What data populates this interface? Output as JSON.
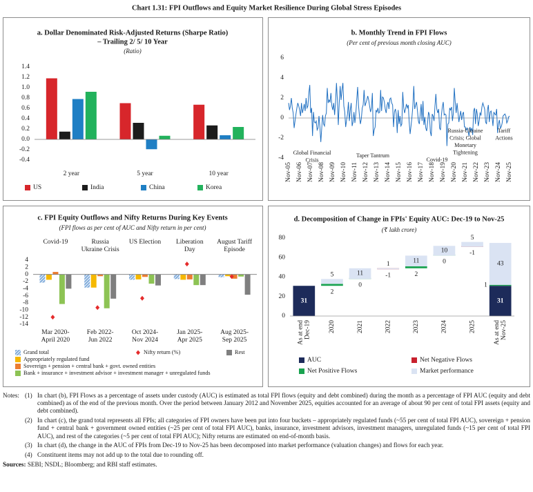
{
  "title": "Chart 1.31: FPI Outflows and Equity Market Resilience During Global Stress Episodes",
  "chart_data": [
    {
      "type": "bar",
      "title": [
        "a. Dollar Denominated Risk-Adjusted Returns (Sharpe Ratio)",
        "– Trailing 2/ 5/ 10 Year"
      ],
      "subtitle": "(Ratio)",
      "categories": [
        "2 year",
        "5 year",
        "10 year"
      ],
      "series": [
        {
          "name": "US",
          "color": "#d7262b",
          "values": [
            1.18,
            0.7,
            0.67
          ]
        },
        {
          "name": "India",
          "color": "#1c1c1c",
          "values": [
            0.15,
            0.32,
            0.27
          ]
        },
        {
          "name": "China",
          "color": "#1f7fc4",
          "values": [
            0.78,
            -0.19,
            0.08
          ]
        },
        {
          "name": "Korea",
          "color": "#22b25c",
          "values": [
            0.92,
            0.07,
            0.24
          ]
        }
      ],
      "ylim": [
        -0.4,
        1.4
      ],
      "yticks": [
        -0.4,
        -0.2,
        {
          "value": 0,
          "label": "0.0"
        },
        0.2,
        0.4,
        0.6,
        0.8,
        {
          "value": 1,
          "label": "1.0"
        },
        1.2,
        1.4
      ],
      "legend": "bottom"
    },
    {
      "type": "line",
      "title": [
        "b. Monthly Trend in FPI Flows"
      ],
      "subtitle": "(Per cent of previous month closing AUC)",
      "color": "#1f6fc1",
      "categories": [
        "Nov-05",
        null,
        null,
        null,
        null,
        null,
        null,
        null,
        null,
        null,
        null,
        null,
        "Nov-06",
        null,
        null,
        null,
        null,
        null,
        null,
        null,
        null,
        null,
        null,
        null,
        "Nov-07",
        null,
        null,
        null,
        null,
        null,
        null,
        null,
        null,
        null,
        null,
        null,
        "Nov-08",
        null,
        null,
        null,
        null,
        null,
        null,
        null,
        null,
        null,
        null,
        null,
        "Nov-09",
        null,
        null,
        null,
        null,
        null,
        null,
        null,
        null,
        null,
        null,
        null,
        "Nov-10",
        null,
        null,
        null,
        null,
        null,
        null,
        null,
        null,
        null,
        null,
        null,
        "Nov-11",
        null,
        null,
        null,
        null,
        null,
        null,
        null,
        null,
        null,
        null,
        null,
        "Nov-12",
        null,
        null,
        null,
        null,
        null,
        null,
        null,
        null,
        null,
        null,
        null,
        "Nov-13",
        null,
        null,
        null,
        null,
        null,
        null,
        null,
        null,
        null,
        null,
        null,
        "Nov-14",
        null,
        null,
        null,
        null,
        null,
        null,
        null,
        null,
        null,
        null,
        null,
        "Nov-15",
        null,
        null,
        null,
        null,
        null,
        null,
        null,
        null,
        null,
        null,
        null,
        "Nov-16",
        null,
        null,
        null,
        null,
        null,
        null,
        null,
        null,
        null,
        null,
        null,
        "Nov-17",
        null,
        null,
        null,
        null,
        null,
        null,
        null,
        null,
        null,
        null,
        null,
        "Nov-18",
        null,
        null,
        null,
        null,
        null,
        null,
        null,
        null,
        null,
        null,
        null,
        "Nov-19",
        null,
        null,
        null,
        null,
        null,
        null,
        null,
        null,
        null,
        null,
        null,
        "Nov-20",
        null,
        null,
        null,
        null,
        null,
        null,
        null,
        null,
        null,
        null,
        null,
        "Nov-21",
        null,
        null,
        null,
        null,
        null,
        null,
        null,
        null,
        null,
        null,
        null,
        "Nov-22",
        null,
        null,
        null,
        null,
        null,
        null,
        null,
        null,
        null,
        null,
        null,
        "Nov-23",
        null,
        null,
        null,
        null,
        null,
        null,
        null,
        null,
        null,
        null,
        null,
        "Nov-24",
        null,
        null,
        null,
        null,
        null,
        null,
        null,
        null,
        null,
        null,
        null,
        "Nov-25"
      ],
      "values": [
        1.5,
        0.8,
        1.2,
        2.0,
        1.0,
        0.5,
        -1.0,
        -0.3,
        0.4,
        1.0,
        1.5,
        1.2,
        0.8,
        0.2,
        1.5,
        0.5,
        0.9,
        1.4,
        0.7,
        2.0,
        1.0,
        1.2,
        2.5,
        3.3,
        0.5,
        1.0,
        -1.8,
        0.6,
        -0.4,
        -0.5,
        -0.3,
        -1.2,
        -1.0,
        0.2,
        -0.9,
        -2.4,
        -1.0,
        0.3,
        -0.6,
        -0.8,
        0.2,
        0.5,
        3.0,
        1.5,
        1.8,
        1.6,
        2.5,
        1.2,
        0.8,
        1.5,
        0.3,
        1.6,
        3.5,
        1.8,
        -0.7,
        1.5,
        3.2,
        1.8,
        2.8,
        3.5,
        1.2,
        0.6,
        -0.9,
        -0.2,
        0.4,
        1.6,
        -0.3,
        0.8,
        1.5,
        -0.8,
        -0.4,
        0.6,
        -0.5,
        0.4,
        1.8,
        3.1,
        1.2,
        0.2,
        -0.6,
        -0.1,
        1.0,
        1.3,
        2.8,
        1.2,
        1.5,
        1.8,
        2.2,
        1.8,
        1.2,
        0.6,
        1.0,
        2.5,
        -1.8,
        -1.2,
        -0.9,
        0.8,
        0.6,
        1.0,
        0.5,
        0.6,
        2.8,
        0.7,
        2.1,
        2.0,
        1.6,
        0.9,
        0.5,
        1.3,
        1.6,
        0.9,
        1.9,
        2.0,
        1.5,
        1.3,
        -0.9,
        0.6,
        0.9,
        0.4,
        -1.5,
        0.8,
        -0.6,
        0.2,
        -0.8,
        -0.6,
        2.6,
        1.1,
        0.5,
        0.9,
        1.4,
        1.0,
        1.3,
        -0.4,
        -1.6,
        -0.8,
        0.1,
        1.2,
        3.2,
        0.9,
        1.3,
        1.6,
        0.7,
        -0.3,
        -0.6,
        0.4,
        1.4,
        -0.3,
        1.7,
        -0.7,
        0.1,
        -1.0,
        -1.3,
        -0.5,
        0.6,
        0.3,
        -1.4,
        -1.8,
        0.4,
        0.2,
        -0.3,
        1.2,
        2.4,
        0.9,
        0.5,
        0.9,
        -1.0,
        -1.2,
        0.3,
        1.1,
        1.6,
        0.3,
        0.4,
        0.3,
        -2.8,
        -0.6,
        -0.5,
        1.0,
        0.8,
        1.1,
        -0.3,
        0.5,
        3.0,
        1.6,
        0.5,
        1.5,
        0.6,
        -0.4,
        0.2,
        0.7,
        -0.2,
        0.4,
        0.6,
        -0.9,
        -0.9,
        -1.2,
        -1.0,
        -1.3,
        -1.8,
        -0.9,
        -1.3,
        -1.0,
        -1.7,
        0.7,
        1.0,
        -0.6,
        0.9,
        0.4,
        -0.8,
        -0.3,
        0.5,
        0.3,
        1.1,
        1.5,
        1.2,
        0.9,
        -0.4,
        -0.6,
        0.8,
        1.3,
        -0.4,
        0.6,
        0.7,
        0.1,
        -0.8,
        0.6,
        0.4,
        0.3,
        0.9,
        -1.5,
        -0.6,
        -0.2,
        -1.0,
        -0.9,
        -0.5,
        0.2,
        0.3,
        0.4,
        0.2,
        -0.5,
        -0.3,
        0.1,
        0.2
      ],
      "ylim": [
        -4,
        6
      ],
      "yticks": [
        -4,
        -2,
        0,
        2,
        4,
        6
      ],
      "annotations": [
        {
          "lines": [
            "Global Financial",
            "Crisis"
          ]
        },
        {
          "lines": [
            "Taper Tantrum"
          ]
        },
        {
          "lines": [
            "Covid-19"
          ]
        },
        {
          "lines": [
            "Russia-Ukraine",
            "Crisis; Global",
            "Monetary",
            "Tightening"
          ]
        },
        {
          "lines": [
            "Tariff",
            "Actions"
          ]
        }
      ]
    },
    {
      "type": "bar",
      "title": [
        "c. FPI Equity Outflows and Nifty Returns During Key Events"
      ],
      "subtitle": "(FPI flows as per cent of AUC and Nifty return in per cent)",
      "events": [
        [
          "Covid-19"
        ],
        [
          "Russia",
          "Ukraine Crisis"
        ],
        [
          "US Election"
        ],
        [
          "Liberation",
          "Day"
        ],
        [
          "August Tariff",
          "Episode"
        ]
      ],
      "categories": [
        [
          "Mar 2020-",
          "April 2020"
        ],
        [
          "Feb 2022-",
          "Jun 2022"
        ],
        [
          "Oct 2024-",
          "Nov 2024"
        ],
        [
          "Jan 2025-",
          "Apr 2025"
        ],
        [
          "Aug 2025-",
          "Sep 2025"
        ]
      ],
      "series": [
        {
          "name": "Grand total",
          "color": "#3b7dc4",
          "hatch": true,
          "values": [
            -2.3,
            -3.7,
            -1.5,
            -1.3,
            -0.8
          ]
        },
        {
          "name": "Appropriately regulated fund",
          "color": "#f5b800",
          "values": [
            -1.5,
            -3.7,
            -1.4,
            -1.5,
            -0.5
          ]
        },
        {
          "name": "Sovereign + pension + central bank + govt. owned entities",
          "color": "#ec7d31",
          "values": [
            0.7,
            -0.5,
            -0.7,
            -1.4,
            -1.2
          ]
        },
        {
          "name": "Bank + insurance + investment advisor + investment manager + unregulated funds",
          "color": "#8dc354",
          "values": [
            -8.3,
            -9.5,
            -2.6,
            -3.0,
            -0.6
          ]
        },
        {
          "name": "Rest",
          "color": "#7f7f7f",
          "values": [
            -4.0,
            -6.8,
            -3.1,
            -3.0,
            -5.7
          ]
        },
        {
          "name": "Nifty return (%)",
          "type": "scatter",
          "marker": "diamond",
          "color": "#e52b2b",
          "values": [
            -12,
            -9.3,
            -6.7,
            2.9,
            -0.6
          ]
        }
      ],
      "ylim": [
        -14,
        4
      ],
      "yticks": [
        -14,
        -12,
        -10,
        -8,
        -6,
        -4,
        -2,
        0,
        2,
        4
      ]
    },
    {
      "type": "waterfall",
      "title": [
        "d. Decomposition of Change in FPIs' Equity AUC: Dec-19 to Nov-25"
      ],
      "subtitle": "(₹ lakh crore)",
      "categories": [
        [
          "As at end",
          "Dec-19"
        ],
        "2020",
        "2021",
        "2022",
        "2023",
        "2024",
        "2025",
        [
          "As at end",
          "Nov-25"
        ]
      ],
      "series": [
        {
          "name": "AUC",
          "color": "#1d2b5a",
          "total": true,
          "values": [
            31,
            null,
            null,
            null,
            null,
            null,
            null,
            31
          ]
        },
        {
          "name": "Net Negative Flows",
          "color": "#c8202d",
          "values": [
            null,
            null,
            null,
            -1,
            null,
            null,
            -1,
            null
          ]
        },
        {
          "name": "Net Positive Flows",
          "color": "#1aa350",
          "values": [
            null,
            2,
            0,
            null,
            2,
            0,
            null,
            1
          ]
        },
        {
          "name": "Market performance",
          "color": "#dae3f3",
          "values": [
            null,
            5,
            11,
            1,
            11,
            10,
            5,
            43
          ]
        }
      ],
      "ylim": [
        0,
        80
      ],
      "yticks": [
        0,
        20,
        40,
        60,
        80
      ]
    }
  ],
  "notes_label": "Notes:",
  "notes": [
    {
      "num": "(1)",
      "text": "In chart (b), FPI Flows as a percentage of assets under custody (AUC) is estimated as total FPI flows (equity and debt combined) during the month as a percentage of FPI AUC (equity and debt combined) as of the end of the previous month. Over the period between January 2012 and November 2025, equities accounted for an average of about 90 per cent of total FPI assets (equity and debt combined)."
    },
    {
      "num": "(2)",
      "text": "In chart (c), the grand total represents all FPIs; all categories of FPI owners have been put into four buckets – appropriately regulated funds (~55 per cent of total FPI AUC), sovereign + pension fund + central bank + government owned entities (~25 per cent of total FPI AUC), banks, insurance, investment advisors, investment managers, unregulated funds (~15 per cent of total FPI AUC), and rest of the categories (~5 per cent of total FPI AUC); Nifty returns are estimated on end-of-month basis."
    },
    {
      "num": "(3)",
      "text": "In chart (d), the change in the AUC of FPIs from Dec-19 to Nov-25 has been decomposed into market performance (valuation changes) and flows for each year."
    },
    {
      "num": "(4)",
      "text": "Constituent items may not add up to the total due to rounding off."
    }
  ],
  "sources_label": "Sources:",
  "sources": "SEBI; NSDL; Bloomberg; and RBI staff estimates."
}
